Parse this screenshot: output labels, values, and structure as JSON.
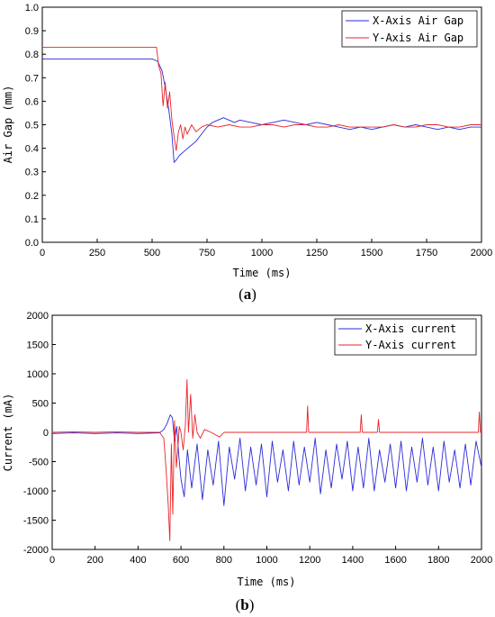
{
  "captions": {
    "a": "a",
    "b": "b"
  },
  "chart_data": [
    {
      "type": "line",
      "caption": "a",
      "xlabel": "Time (ms)",
      "ylabel": "Air Gap (mm)",
      "xlim": [
        0,
        2000
      ],
      "ylim": [
        0.0,
        1.0
      ],
      "xticks": [
        0,
        250,
        500,
        750,
        1000,
        1250,
        1500,
        1750,
        2000
      ],
      "yticks": [
        0.0,
        0.1,
        0.2,
        0.3,
        0.4,
        0.5,
        0.6,
        0.7,
        0.8,
        0.9,
        1.0
      ],
      "ytick_labels": [
        "0.0",
        "0.1",
        "0.2",
        "0.3",
        "0.4",
        "0.5",
        "0.6",
        "0.7",
        "0.8",
        "0.9",
        "1.0"
      ],
      "grid": false,
      "legend_position": "top-right",
      "series": [
        {
          "name": "X-Axis Air Gap",
          "color": "#2b2bd9",
          "x": [
            0,
            100,
            200,
            300,
            400,
            500,
            525,
            545,
            560,
            575,
            590,
            600,
            610,
            625,
            650,
            675,
            700,
            725,
            750,
            775,
            800,
            825,
            850,
            875,
            900,
            950,
            1000,
            1050,
            1100,
            1150,
            1200,
            1250,
            1300,
            1350,
            1400,
            1450,
            1500,
            1550,
            1600,
            1650,
            1700,
            1750,
            1800,
            1850,
            1900,
            1950,
            2000
          ],
          "values": [
            0.78,
            0.78,
            0.78,
            0.78,
            0.78,
            0.78,
            0.77,
            0.73,
            0.66,
            0.57,
            0.46,
            0.34,
            0.35,
            0.37,
            0.39,
            0.41,
            0.43,
            0.46,
            0.49,
            0.51,
            0.52,
            0.53,
            0.52,
            0.51,
            0.52,
            0.51,
            0.5,
            0.51,
            0.52,
            0.51,
            0.5,
            0.51,
            0.5,
            0.49,
            0.48,
            0.49,
            0.48,
            0.49,
            0.5,
            0.49,
            0.5,
            0.49,
            0.48,
            0.49,
            0.48,
            0.49,
            0.49
          ]
        },
        {
          "name": "Y-Axis Air Gap",
          "color": "#e8242a",
          "x": [
            0,
            100,
            200,
            300,
            400,
            500,
            520,
            530,
            540,
            550,
            560,
            570,
            580,
            590,
            600,
            610,
            620,
            630,
            640,
            650,
            660,
            680,
            700,
            725,
            750,
            800,
            850,
            900,
            950,
            1000,
            1050,
            1100,
            1150,
            1200,
            1250,
            1300,
            1350,
            1400,
            1450,
            1500,
            1550,
            1600,
            1650,
            1700,
            1750,
            1800,
            1850,
            1900,
            1950,
            2000
          ],
          "values": [
            0.83,
            0.83,
            0.83,
            0.83,
            0.83,
            0.83,
            0.83,
            0.75,
            0.72,
            0.58,
            0.68,
            0.57,
            0.64,
            0.52,
            0.45,
            0.39,
            0.47,
            0.5,
            0.44,
            0.49,
            0.46,
            0.5,
            0.47,
            0.49,
            0.5,
            0.49,
            0.5,
            0.49,
            0.49,
            0.5,
            0.5,
            0.49,
            0.5,
            0.5,
            0.49,
            0.49,
            0.5,
            0.49,
            0.49,
            0.49,
            0.49,
            0.5,
            0.49,
            0.49,
            0.5,
            0.5,
            0.49,
            0.49,
            0.5,
            0.5
          ]
        }
      ]
    },
    {
      "type": "line",
      "caption": "b",
      "xlabel": "Time (ms)",
      "ylabel": "Current (mA)",
      "xlim": [
        0,
        2000
      ],
      "ylim": [
        -2000,
        2000
      ],
      "xticks": [
        0,
        200,
        400,
        600,
        800,
        1000,
        1200,
        1400,
        1600,
        1800,
        2000
      ],
      "yticks": [
        -2000,
        -1500,
        -1000,
        -500,
        0,
        500,
        1000,
        1500,
        2000
      ],
      "ytick_labels": [
        "-2000",
        "-1500",
        "-1000",
        "-500",
        "0",
        "500",
        "1000",
        "1500",
        "2000"
      ],
      "grid": false,
      "legend_position": "top-right",
      "series": [
        {
          "name": "X-Axis current",
          "color": "#2b2bd9",
          "x": [
            0,
            100,
            200,
            300,
            400,
            500,
            520,
            535,
            550,
            560,
            570,
            580,
            590,
            600,
            615,
            630,
            650,
            675,
            700,
            725,
            750,
            775,
            800,
            825,
            850,
            875,
            900,
            925,
            950,
            975,
            1000,
            1025,
            1050,
            1075,
            1100,
            1125,
            1150,
            1175,
            1200,
            1225,
            1250,
            1275,
            1300,
            1325,
            1350,
            1375,
            1400,
            1425,
            1450,
            1475,
            1500,
            1525,
            1550,
            1575,
            1600,
            1625,
            1650,
            1675,
            1700,
            1725,
            1750,
            1775,
            1800,
            1825,
            1850,
            1875,
            1900,
            1925,
            1950,
            1975,
            2000
          ],
          "values": [
            -20,
            -10,
            -20,
            -10,
            -20,
            -10,
            50,
            150,
            300,
            250,
            -150,
            100,
            -400,
            -800,
            -1100,
            -300,
            -950,
            -200,
            -1150,
            -300,
            -900,
            -150,
            -1250,
            -250,
            -800,
            -100,
            -1000,
            -250,
            -900,
            -200,
            -1100,
            -150,
            -850,
            -300,
            -1000,
            -150,
            -900,
            -250,
            -850,
            -100,
            -1050,
            -300,
            -950,
            -200,
            -800,
            -150,
            -1000,
            -250,
            -950,
            -100,
            -1000,
            -300,
            -850,
            -200,
            -950,
            -150,
            -1000,
            -250,
            -850,
            -100,
            -900,
            -250,
            -1000,
            -150,
            -850,
            -300,
            -950,
            -200,
            -900,
            -150,
            -600
          ]
        },
        {
          "name": "Y-Axis current",
          "color": "#e8242a",
          "x": [
            0,
            100,
            200,
            300,
            400,
            500,
            520,
            530,
            540,
            548,
            555,
            562,
            570,
            578,
            585,
            592,
            600,
            610,
            620,
            628,
            635,
            645,
            655,
            665,
            675,
            690,
            710,
            740,
            780,
            800,
            850,
            900,
            950,
            1000,
            1050,
            1100,
            1150,
            1185,
            1190,
            1195,
            1250,
            1300,
            1350,
            1400,
            1435,
            1440,
            1445,
            1500,
            1515,
            1520,
            1525,
            1550,
            1600,
            1650,
            1700,
            1750,
            1800,
            1850,
            1900,
            1950,
            1985,
            1990,
            1995,
            2000
          ],
          "values": [
            0,
            10,
            0,
            10,
            0,
            0,
            -100,
            -600,
            -1200,
            -1850,
            -200,
            -1400,
            200,
            -600,
            -300,
            100,
            0,
            -300,
            100,
            900,
            0,
            650,
            -100,
            300,
            0,
            -100,
            50,
            0,
            -80,
            0,
            0,
            0,
            0,
            0,
            0,
            0,
            0,
            0,
            450,
            0,
            0,
            0,
            0,
            0,
            0,
            300,
            0,
            0,
            0,
            220,
            0,
            0,
            0,
            0,
            0,
            0,
            0,
            0,
            0,
            0,
            0,
            350,
            0,
            0
          ]
        }
      ]
    }
  ]
}
